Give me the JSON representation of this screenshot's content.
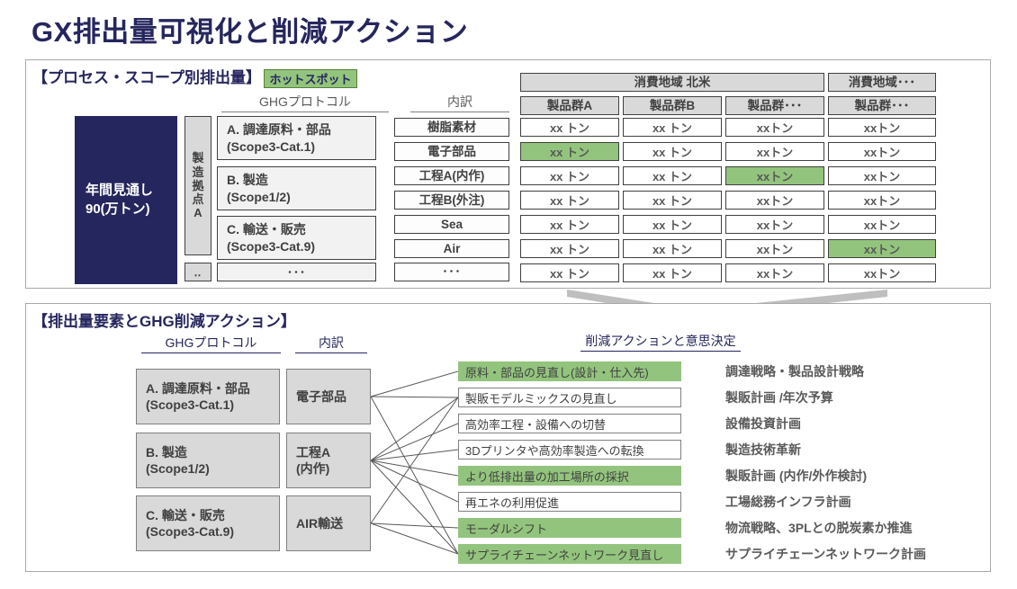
{
  "title": "GX排出量可視化と削減アクション",
  "colors": {
    "navy": "#26265E",
    "green": "#93C47D",
    "green_border": "#538135",
    "box_gray": "#D9D9D9"
  },
  "section1": {
    "heading": "【プロセス・スコープ別排出量】",
    "hotspot_label": "ホットスポット",
    "ghg_label": "GHGプロトコル",
    "breakdown_label": "内訳",
    "annual_lines": [
      "年間見通し",
      "90(万トン)"
    ],
    "site_label": "製造拠点A",
    "site_more": "‥",
    "ghg_items": [
      {
        "lines": [
          "A. 調達原料・部品",
          "(Scope3-Cat.1)"
        ]
      },
      {
        "lines": [
          "B. 製造",
          "(Scope1/2)"
        ]
      },
      {
        "lines": [
          "C. 輸送・販売",
          "(Scope3-Cat.9)"
        ]
      }
    ],
    "ghg_more": "･･･",
    "breakdown_items": [
      "樹脂素材",
      "電子部品",
      "工程A(内作)",
      "工程B(外注)",
      "Sea",
      "Air"
    ],
    "breakdown_more": "･･･",
    "region_headers": [
      "消費地域 北米",
      "消費地域･･･"
    ],
    "product_headers": [
      "製品群A",
      "製品群B",
      "製品群･･･",
      "製品群･･･"
    ],
    "cell_rows": [
      [
        "xx トン",
        "xx トン",
        "xxトン",
        "xxトン"
      ],
      [
        "xx トン",
        "xx トン",
        "xxトン",
        "xxトン"
      ],
      [
        "xx トン",
        "xx トン",
        "xxトン",
        "xxトン"
      ],
      [
        "xx トン",
        "xx トン",
        "xxトン",
        "xxトン"
      ],
      [
        "xx トン",
        "xx トン",
        "xxトン",
        "xxトン"
      ],
      [
        "xx トン",
        "xx トン",
        "xxトン",
        "xxトン"
      ],
      [
        "xx トン",
        "xx トン",
        "xxトン",
        "xxトン"
      ]
    ],
    "highlight_cells": [
      [
        1,
        0
      ],
      [
        2,
        2
      ],
      [
        5,
        3
      ]
    ]
  },
  "section2": {
    "heading": "【排出量要素とGHG削減アクション】",
    "ghg_label": "GHGプロトコル",
    "breakdown_label": "内訳",
    "actions_label": "削減アクションと意思決定",
    "ghg_items": [
      {
        "lines": [
          "A. 調達原料・部品",
          "(Scope3-Cat.1)"
        ]
      },
      {
        "lines": [
          "B. 製造",
          "(Scope1/2)"
        ]
      },
      {
        "lines": [
          "C. 輸送・販売",
          "(Scope3-Cat.9)"
        ]
      }
    ],
    "breakdown_items": [
      {
        "lines": [
          "電子部品"
        ]
      },
      {
        "lines": [
          "工程A",
          "(内作)"
        ]
      },
      {
        "lines": [
          "AIR輸送"
        ]
      }
    ],
    "actions": [
      {
        "label": "原料・部品の見直し(設計・仕入先)",
        "highlight": true,
        "decision": "調達戦略・製品設計戦略"
      },
      {
        "label": "製販モデルミックスの見直し",
        "highlight": false,
        "decision": "製販計画 /年次予算"
      },
      {
        "label": "高効率工程・設備への切替",
        "highlight": false,
        "decision": "設備投資計画"
      },
      {
        "label": "3Dプリンタや高効率製造への転換",
        "highlight": false,
        "decision": "製造技術革新"
      },
      {
        "label": "より低排出量の加工場所の採択",
        "highlight": true,
        "decision": "製販計画 (内作/外作検討)"
      },
      {
        "label": "再エネの利用促進",
        "highlight": false,
        "decision": "工場総務インフラ計画"
      },
      {
        "label": "モーダルシフト",
        "highlight": true,
        "decision": "物流戦略、3PLとの脱炭素か推進"
      },
      {
        "label": "サプライチェーンネットワーク見直し",
        "highlight": true,
        "decision": "サプライチェーンネットワーク計画"
      }
    ],
    "connections": [
      [
        0,
        0
      ],
      [
        0,
        1
      ],
      [
        0,
        7
      ],
      [
        1,
        1
      ],
      [
        1,
        2
      ],
      [
        1,
        3
      ],
      [
        1,
        4
      ],
      [
        1,
        5
      ],
      [
        1,
        7
      ],
      [
        2,
        1
      ],
      [
        2,
        6
      ],
      [
        2,
        7
      ]
    ]
  }
}
